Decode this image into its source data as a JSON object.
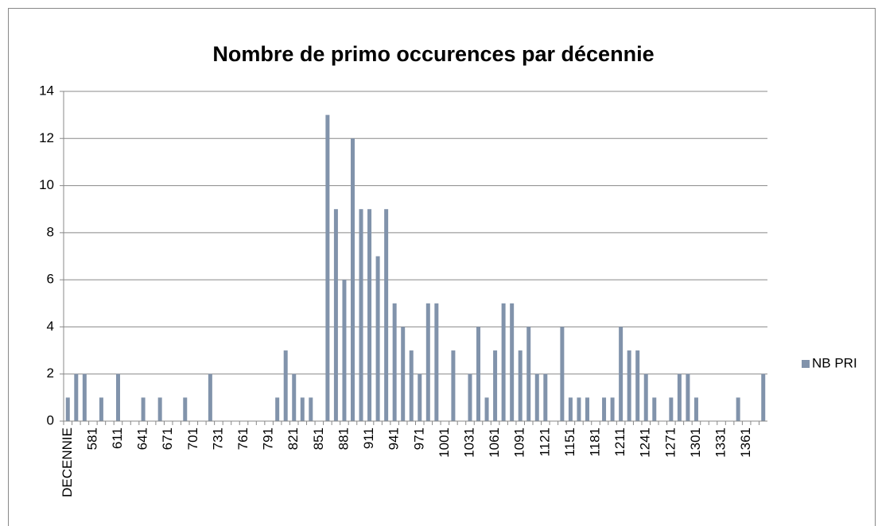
{
  "chart_data": {
    "type": "bar",
    "title": "Nombre de primo occurences par décennie",
    "categories": [
      "DECENNIE",
      null,
      null,
      "581",
      null,
      null,
      "611",
      null,
      null,
      "641",
      null,
      null,
      "671",
      null,
      null,
      "701",
      null,
      null,
      "731",
      null,
      null,
      "761",
      null,
      null,
      "791",
      null,
      null,
      "821",
      null,
      null,
      "851",
      null,
      null,
      "881",
      null,
      null,
      "911",
      null,
      null,
      "941",
      null,
      null,
      "971",
      null,
      null,
      "1001",
      null,
      null,
      "1031",
      null,
      null,
      "1061",
      null,
      null,
      "1091",
      null,
      null,
      "1121",
      null,
      null,
      "1151",
      null,
      null,
      "1181",
      null,
      null,
      "1211",
      null,
      null,
      "1241",
      null,
      null,
      "1271",
      null,
      null,
      "1301",
      null,
      null,
      "1331",
      null,
      null,
      "1361",
      null,
      null
    ],
    "series": [
      {
        "name": "NB PRI",
        "color": "#8193ab",
        "values": [
          1,
          2,
          2,
          0,
          1,
          0,
          2,
          0,
          0,
          1,
          0,
          1,
          0,
          0,
          1,
          0,
          0,
          2,
          0,
          0,
          0,
          0,
          0,
          0,
          0,
          1,
          3,
          2,
          1,
          1,
          0,
          13,
          9,
          6,
          12,
          9,
          9,
          7,
          9,
          5,
          4,
          3,
          2,
          5,
          5,
          0,
          3,
          0,
          2,
          4,
          1,
          3,
          5,
          5,
          3,
          4,
          2,
          2,
          0,
          4,
          1,
          1,
          1,
          0,
          1,
          1,
          4,
          3,
          3,
          2,
          1,
          0,
          1,
          2,
          2,
          1,
          0,
          0,
          0,
          0,
          1,
          0,
          0,
          2
        ]
      }
    ],
    "ylim": [
      0,
      14
    ],
    "yticks": [
      0,
      2,
      4,
      6,
      8,
      10,
      12,
      14
    ],
    "grid": true,
    "legend": "right"
  }
}
